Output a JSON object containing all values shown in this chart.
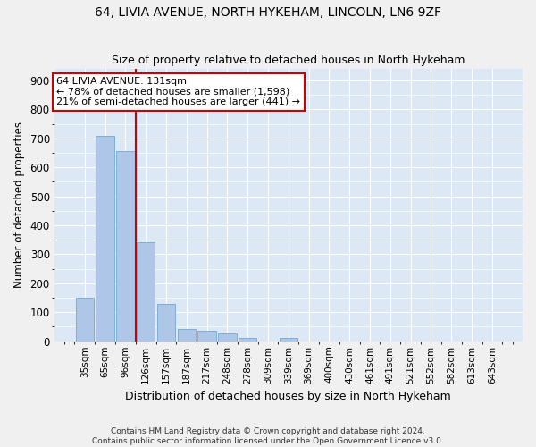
{
  "title1": "64, LIVIA AVENUE, NORTH HYKEHAM, LINCOLN, LN6 9ZF",
  "title2": "Size of property relative to detached houses in North Hykeham",
  "xlabel": "Distribution of detached houses by size in North Hykeham",
  "ylabel": "Number of detached properties",
  "categories": [
    "35sqm",
    "65sqm",
    "96sqm",
    "126sqm",
    "157sqm",
    "187sqm",
    "217sqm",
    "248sqm",
    "278sqm",
    "309sqm",
    "339sqm",
    "369sqm",
    "400sqm",
    "430sqm",
    "461sqm",
    "491sqm",
    "521sqm",
    "552sqm",
    "582sqm",
    "613sqm",
    "643sqm"
  ],
  "values": [
    150,
    710,
    655,
    340,
    130,
    42,
    35,
    27,
    12,
    0,
    12,
    0,
    0,
    0,
    0,
    0,
    0,
    0,
    0,
    0,
    0
  ],
  "bar_color": "#aec6e8",
  "bar_edge_color": "#7bafd4",
  "vline_x_index": 3,
  "vline_color": "#cc0000",
  "annotation_text": "64 LIVIA AVENUE: 131sqm\n← 78% of detached houses are smaller (1,598)\n21% of semi-detached houses are larger (441) →",
  "annotation_box_color": "#ffffff",
  "annotation_box_edge": "#cc0000",
  "footer": "Contains HM Land Registry data © Crown copyright and database right 2024.\nContains public sector information licensed under the Open Government Licence v3.0.",
  "ylim": [
    0,
    940
  ],
  "plot_bg_color": "#dce8f5",
  "fig_bg_color": "#f0f0f0",
  "grid_color": "#ffffff"
}
